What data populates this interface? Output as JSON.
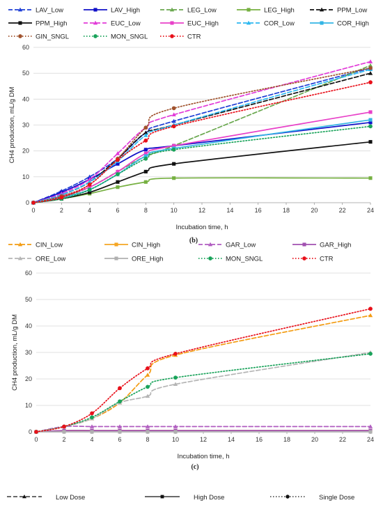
{
  "chart_data": [
    {
      "type": "line",
      "caption": "(b)",
      "xlabel": "Incubation time, h",
      "ylabel": "CH4 production, mL/g DM",
      "xlim": [
        0,
        24
      ],
      "ylim": [
        0,
        60
      ],
      "xticks": [
        0,
        2,
        4,
        6,
        8,
        10,
        12,
        14,
        16,
        18,
        20,
        22,
        24
      ],
      "yticks": [
        0,
        10,
        20,
        30,
        40,
        50,
        60
      ],
      "x": [
        0,
        2,
        4,
        6,
        8,
        10,
        24
      ],
      "legend_position": "top",
      "series": [
        {
          "name": "LAV_Low",
          "color": "#1f3fd6",
          "dash": "low",
          "marker": "triangle",
          "values": [
            0,
            4.5,
            10,
            17,
            27,
            31.5,
            52
          ]
        },
        {
          "name": "LAV_High",
          "color": "#1010c8",
          "dash": "solid",
          "marker": "square",
          "values": [
            0,
            4,
            9,
            15,
            20.5,
            22,
            31
          ]
        },
        {
          "name": "LEG_Low",
          "color": "#6aa84f",
          "dash": "low",
          "marker": "triangle",
          "values": [
            0,
            2,
            6,
            12,
            18,
            22,
            53
          ]
        },
        {
          "name": "LEG_High",
          "color": "#76b041",
          "dash": "solid",
          "marker": "square",
          "values": [
            0,
            1.5,
            3.5,
            6,
            8,
            9.5,
            9.5
          ]
        },
        {
          "name": "PPM_Low",
          "color": "#111111",
          "dash": "low",
          "marker": "triangle",
          "values": [
            0,
            3,
            8,
            17,
            27,
            30,
            50
          ]
        },
        {
          "name": "PPM_High",
          "color": "#111111",
          "dash": "solid",
          "marker": "square",
          "values": [
            0,
            1.5,
            4,
            8,
            12,
            15,
            23.5
          ]
        },
        {
          "name": "EUC_Low",
          "color": "#e23ad8",
          "dash": "low",
          "marker": "triangle",
          "values": [
            0,
            3.5,
            9,
            19,
            29,
            34,
            54.5
          ]
        },
        {
          "name": "EUC_High",
          "color": "#e840c8",
          "dash": "solid",
          "marker": "square",
          "values": [
            0,
            2.5,
            6,
            12,
            19,
            22,
            35
          ]
        },
        {
          "name": "COR_Low",
          "color": "#2bb8f0",
          "dash": "low",
          "marker": "triangle",
          "values": [
            0,
            3,
            8,
            16,
            26,
            30,
            51.5
          ]
        },
        {
          "name": "COR_High",
          "color": "#33b5e5",
          "dash": "solid",
          "marker": "square",
          "values": [
            0,
            2,
            5,
            11,
            18,
            21,
            32
          ]
        },
        {
          "name": "GIN_SNGL",
          "color": "#a0522d",
          "dash": "single",
          "marker": "circle",
          "values": [
            0,
            2.5,
            7,
            17,
            29,
            36.5,
            52
          ]
        },
        {
          "name": "MON_SNGL",
          "color": "#19a35a",
          "dash": "single",
          "marker": "circle",
          "values": [
            0,
            1.5,
            5,
            11,
            17,
            20.5,
            29.5
          ]
        },
        {
          "name": "CTR",
          "color": "#e8101a",
          "dash": "single",
          "marker": "circle",
          "values": [
            0,
            2,
            7,
            16.5,
            24,
            29.5,
            46.5
          ]
        }
      ]
    },
    {
      "type": "line",
      "caption": "(c)",
      "xlabel": "Incubation time, h",
      "ylabel": "CH4 production, mL/g DM",
      "xlim": [
        0,
        24
      ],
      "ylim": [
        0,
        60
      ],
      "xticks": [
        0,
        2,
        4,
        6,
        8,
        10,
        12,
        14,
        16,
        18,
        20,
        22,
        24
      ],
      "yticks": [
        0,
        10,
        20,
        30,
        40,
        50,
        60
      ],
      "x": [
        0,
        2,
        4,
        6,
        8,
        10,
        24
      ],
      "legend_position": "top",
      "series": [
        {
          "name": "CIN_Low",
          "color": "#f39c12",
          "dash": "low",
          "marker": "triangle",
          "values": [
            0,
            2,
            5,
            11,
            21.5,
            29,
            44
          ]
        },
        {
          "name": "CIN_High",
          "color": "#f5a623",
          "dash": "solid",
          "marker": "square",
          "values": [
            0,
            0.5,
            0.5,
            0.5,
            0.5,
            0.5,
            0.5
          ]
        },
        {
          "name": "GAR_Low",
          "color": "#b05cc0",
          "dash": "low",
          "marker": "triangle",
          "values": [
            0,
            2,
            2,
            2,
            2,
            2,
            2
          ]
        },
        {
          "name": "GAR_High",
          "color": "#a050b0",
          "dash": "solid",
          "marker": "square",
          "values": [
            0,
            0.5,
            0.5,
            0.5,
            0.5,
            0.5,
            0.5
          ]
        },
        {
          "name": "ORE_Low",
          "color": "#b5b5b5",
          "dash": "low",
          "marker": "triangle",
          "values": [
            0,
            2,
            5,
            11,
            13.5,
            18,
            30
          ]
        },
        {
          "name": "ORE_High",
          "color": "#b0b0b0",
          "dash": "solid",
          "marker": "square",
          "values": [
            0,
            0,
            0,
            0,
            0,
            0,
            0
          ]
        },
        {
          "name": "MON_SNGL",
          "color": "#19a35a",
          "dash": "single",
          "marker": "circle",
          "values": [
            0,
            2,
            5.5,
            11.5,
            17,
            20.5,
            29.5
          ]
        },
        {
          "name": "CTR",
          "color": "#e8101a",
          "dash": "single",
          "marker": "circle",
          "values": [
            0,
            2,
            7,
            16.5,
            24,
            29.5,
            46.5
          ]
        }
      ]
    }
  ],
  "dose_legend": {
    "low": "Low Dose",
    "high": "High Dose",
    "single": "Single Dose"
  }
}
